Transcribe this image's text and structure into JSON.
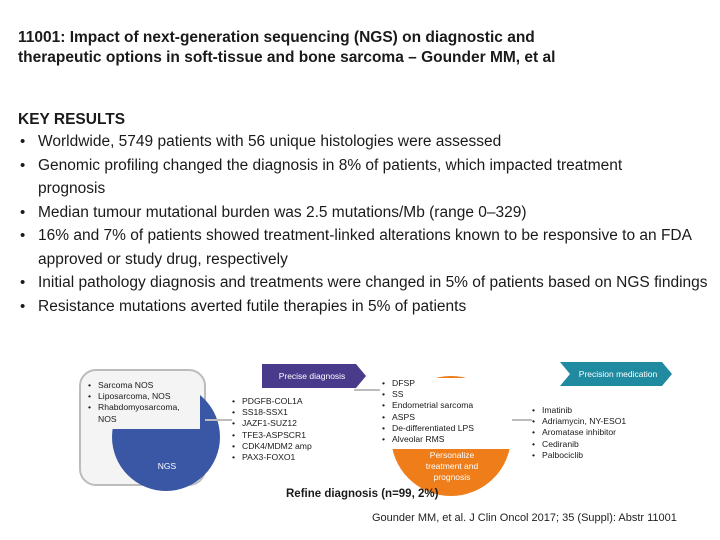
{
  "title": "11001: Impact of next-generation sequencing (NGS) on diagnostic and therapeutic options in soft-tissue and bone sarcoma – Gounder MM, et al",
  "results": {
    "heading": "KEY RESULTS",
    "bullets": [
      "Worldwide, 5749 patients with 56 unique histologies were assessed",
      "Genomic profiling changed the diagnosis in 8% of patients, which impacted treatment prognosis",
      "Median tumour mutational burden was 2.5 mutations/Mb (range 0–329)",
      "16% and 7% of patients showed treatment-linked alterations known to be responsive to an FDA approved or study drug, respectively",
      "Initial pathology diagnosis and treatments were changed in 5% of patients based on NGS findings",
      "Resistance mutations averted futile therapies in 5% of patients"
    ]
  },
  "diagram": {
    "precise_diagnosis_label": "Precise diagnosis",
    "precision_medication_label": "Precision medication",
    "ngs_label": "NGS",
    "personalize_label": "Personalize treatment and prognosis",
    "initial_diagnoses": [
      "Sarcoma NOS",
      "Liposarcoma, NOS",
      "Rhabdomyosarcoma, NOS"
    ],
    "fusions": [
      "PDGFB-COL1A",
      "SS18-SSX1",
      "JAZF1-SUZ12",
      "TFE3-ASPSCR1",
      "CDK4/MDM2 amp",
      "PAX3-FOXO1"
    ],
    "revised_diagnoses": [
      "DFSP",
      "SS",
      "Endometrial sarcoma",
      "ASPS",
      "De-differentiated LPS",
      "Alveolar RMS"
    ],
    "medications": [
      "Imatinib",
      "Adriamycin, NY-ESO1",
      "Aromatase inhibitor",
      "Cediranib",
      "Palbociclib"
    ],
    "colors": {
      "blue": "#3a57a5",
      "purple": "#4a3a8c",
      "teal": "#1f8aa0",
      "orange": "#ef7d1a",
      "gray": "#bcbcbc"
    }
  },
  "caption": "Refine diagnosis (n=99, 2%)",
  "citation": "Gounder MM, et al. J Clin Oncol 2017; 35 (Suppl): Abstr 11001"
}
